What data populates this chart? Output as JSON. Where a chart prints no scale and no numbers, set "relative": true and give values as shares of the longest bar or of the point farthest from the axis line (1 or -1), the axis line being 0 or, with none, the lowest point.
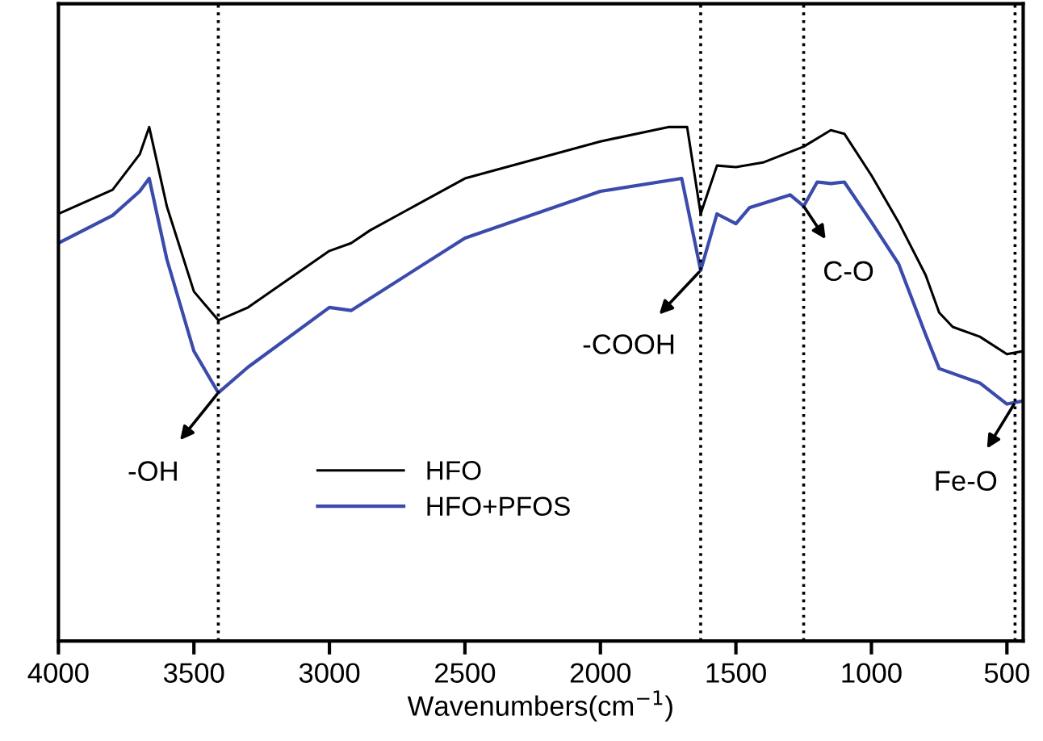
{
  "chart_data": {
    "type": "line",
    "relative": true,
    "xlabel": "Wavenumbers(cm$^{−1}$)",
    "xlim": [
      4000,
      440
    ],
    "xticks": [
      4000,
      3500,
      3000,
      2500,
      2000,
      1500,
      1000,
      500
    ],
    "tick_labels": "x",
    "legend": "bottom",
    "grid": false,
    "series": [
      {
        "name": "HFO",
        "color": "#000000",
        "x": [
          4000,
          3800,
          3700,
          3665,
          3600,
          3500,
          3410,
          3300,
          3000,
          2920,
          2850,
          2500,
          2000,
          1750,
          1680,
          1630,
          1570,
          1500,
          1400,
          1250,
          1150,
          1100,
          1000,
          900,
          800,
          750,
          700,
          600,
          500,
          440
        ],
        "values": [
          0.831,
          0.878,
          0.947,
          1,
          0.846,
          0.68,
          0.624,
          0.649,
          0.759,
          0.774,
          0.799,
          0.9,
          0.972,
          1,
          1,
          0.831,
          0.925,
          0.922,
          0.931,
          0.962,
          0.994,
          0.987,
          0.906,
          0.815,
          0.712,
          0.639,
          0.611,
          0.592,
          0.558,
          0.564
        ]
      },
      {
        "name": "HFO+PFOS",
        "color": "#3a4bab",
        "x": [
          4000,
          3800,
          3700,
          3665,
          3600,
          3500,
          3410,
          3300,
          3000,
          2920,
          2500,
          2000,
          1700,
          1630,
          1570,
          1500,
          1450,
          1300,
          1250,
          1200,
          1150,
          1100,
          1000,
          900,
          800,
          750,
          600,
          500,
          440
        ],
        "values": [
          0.774,
          0.828,
          0.875,
          0.9,
          0.743,
          0.564,
          0.483,
          0.533,
          0.649,
          0.643,
          0.784,
          0.875,
          0.9,
          0.721,
          0.831,
          0.812,
          0.843,
          0.868,
          0.846,
          0.893,
          0.89,
          0.893,
          0.815,
          0.734,
          0.596,
          0.53,
          0.502,
          0.461,
          0.467
        ]
      }
    ],
    "ref_lines": [
      {
        "axis": "x",
        "value": 3410,
        "line_style": "dotted",
        "color": "#000000"
      },
      {
        "axis": "x",
        "value": 1630,
        "line_style": "dotted",
        "color": "#000000"
      },
      {
        "axis": "x",
        "value": 1250,
        "line_style": "dotted",
        "color": "#000000"
      },
      {
        "axis": "x",
        "value": 470,
        "line_style": "dotted",
        "color": "#000000"
      }
    ],
    "annotations": [
      {
        "text": "-OH",
        "x": 3410,
        "y": 0.483
      },
      {
        "text": "-COOH",
        "x": 1630,
        "y": 0.721
      },
      {
        "text": "C-O",
        "x": 1250,
        "y": 0.846
      },
      {
        "text": "Fe-O",
        "x": 470,
        "y": 0.464
      }
    ]
  }
}
